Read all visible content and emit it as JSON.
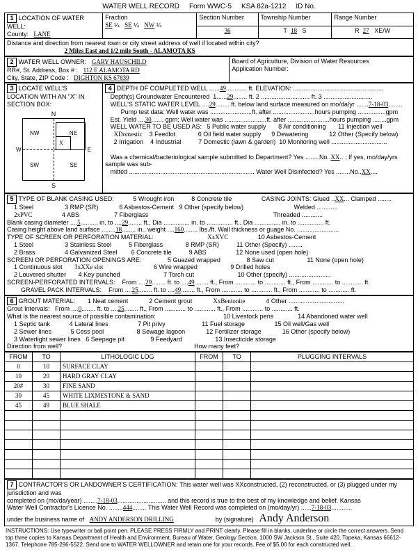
{
  "header": {
    "title": "WATER WELL RECORD",
    "form": "Form WWC-5",
    "ksa": "KSA 82a-1212",
    "idno": "ID No."
  },
  "loc": {
    "title": "LOCATION OF WATER WELL:",
    "county_label": "County:",
    "county": "LANE",
    "fraction_label": "Fraction",
    "frac1": "SE",
    "frac1sub": "¼",
    "frac2": "SE",
    "frac2sub": "¼",
    "frac3": "NW",
    "frac3sub": "¼",
    "section_label": "Section Number",
    "section": "36",
    "township_label": "Township Number",
    "township_t": "T",
    "township": "18",
    "township_s": "S",
    "range_label": "Range Number",
    "range_r": "R",
    "range": "27",
    "range_ew": "XE/W",
    "dist_label": "Distance and direction from nearest town or city street address of well if located within city?",
    "dist": "2 Miles East and 1/2 mile South - ALAMOTA KS"
  },
  "owner": {
    "title": "WATER WELL OWNER:",
    "name": "GARY HAUSCHILD",
    "addr_label": "RR#, St. Address, Box # :",
    "addr": "112 E ALAMOTA RD",
    "city_label": "City, State, ZIP Code :",
    "city": "DIGHTON  KS   67839",
    "board": "Board of Agriculture, Division of Water Resources",
    "appno": "Application Number:"
  },
  "sec3": {
    "title": "LOCATE WELL'S LOCATION WITH AN \"X\" IN SECTION BOX:",
    "labels": {
      "n": "N",
      "s": "S",
      "w": "W",
      "e": "E",
      "nw": "NW",
      "ne": "NE",
      "sw": "SW",
      "se": "SE"
    }
  },
  "sec4": {
    "depth_label": "DEPTH OF COMPLETED WELL",
    "depth": "49",
    "depth_unit": "ft.  ELEVATION:",
    "gw_label": "Depth(s) Groundwater Encountered",
    "gw1": "1",
    "gw2": "29",
    "gw3": "ft.  2",
    "gw4": "ft.  3",
    "static_label": "WELL'S STATIC WATER LEVEL",
    "static": "29",
    "static_unit": "ft. below land surface measured on mo/da/yr",
    "static_date": "7-18-03",
    "pump_label": "Pump test data:   Well water was",
    "pump_after": "ft. after",
    "pump_hours": "hours pumping",
    "pump_gpm": "gpm",
    "est_label": "Est. Yield",
    "est": "30",
    "est_unit": "gpm;   Well water was",
    "est_after": "ft. after",
    "est_hours": "hours pumping",
    "est_gpm": "gpm",
    "use_label": "WELL WATER TO BE USED AS:",
    "uses": [
      "XDomestic",
      "3  Feedlot",
      "2  Irrigation",
      "4  Industrial",
      "5  Public water supply",
      "6  Oil field water supply",
      "7  Domestic (lawn & garden)",
      "8  Air conditioning",
      "9  Dewatering",
      "10  Monitoring well",
      "11  Injection well",
      "12  Other (Specify below)"
    ],
    "chem_label": "Was a chemical/bacteriological sample submitted to Department?  Yes",
    "chem_no": "No",
    "chem_xx": "XX",
    "chem_tail": "; If yes, mo/day/yrs sample was sub-",
    "mitted": "mitted",
    "disinf": "Water Well Disinfected?  Yes",
    "disinf_no": "No",
    "disinf_xx": "XX"
  },
  "sec5": {
    "title": "TYPE OF BLANK CASING USED:",
    "opts": [
      "1  Steel",
      "2xPVC",
      "3  RMP (SR)",
      "4  ABS",
      "5  Wrought iron",
      "6  Asbestos-Cement",
      "7  Fiberglass",
      "8  Concrete tile",
      "9  Other (specify below)"
    ],
    "joints_label": "CASING JOINTS:",
    "joints_glued": "Glued",
    "joints_xx": "XX",
    "joints_clamped": "Clamped",
    "joints_welded": "Welded",
    "joints_threaded": "Threaded",
    "bcd_label": "Blank casing diameter",
    "bcd": "5",
    "bcd_into": "in. to",
    "bcd_ft": "29",
    "bcd_ft_u": "ft., Dia",
    "bcd_in_to": "in. to",
    "bcd_ft2": "ft., Dia",
    "bcd_in_to2": "in. to",
    "bcd_ft3": "ft.",
    "ch_label": "Casing height above land surface",
    "ch": "18",
    "ch_in": "in., weight",
    "ch_wt": "160",
    "ch_lbs": "lbs./ft. Wall thickness or guage No.",
    "perf_title": "TYPE OF SCREEN OR PERFORATION MATERIAL:",
    "perf_opts": [
      "1  Steel",
      "2  Brass",
      "3  Stainless Steel",
      "4  Galvanized Steel",
      "5  Fiberglass",
      "6  Concrete tile",
      "XxXVC",
      "8  RMP (SR)",
      "9  ABS",
      "10  Asbestos-Cement",
      "11  Other (Specify)",
      "12  None used (open hole)"
    ],
    "open_title": "SCREEN OR PERFORATION OPENINGS ARE:",
    "open_opts": [
      "1  Continuous slot",
      "2  Louvered shutter",
      "3xXXe slot",
      "4  Key punched",
      "5  Guazed wrapped",
      "6  Wire wrapped",
      "7  Torch cut",
      "8  Saw cut",
      "9  Drilled holes",
      "10  Other (specify)",
      "11  None (open hole)"
    ],
    "sp_label": "SCREEN-PERFORATED INTERVALS:",
    "sp_from": "From",
    "sp1": "29",
    "sp_to": "ft. to",
    "sp2": "49",
    "sp_ft": "ft., From",
    "sp_to2": "to",
    "sp_ft2": "ft., From",
    "sp_to3": "to",
    "sp_ft3": "ft.",
    "gp_label": "GRAVEL PACK INTERVALS:",
    "gp1": "25",
    "gp2": "49"
  },
  "sec6": {
    "title": "GROUT MATERIAL:",
    "opts": [
      "1  Neat cement",
      "2  Cement grout",
      "XxBentonite",
      "4  Other"
    ],
    "gi_label": "Grout Intervals:",
    "gi_from": "From",
    "gi1": "0",
    "gi_to": "ft. to",
    "gi2": "25",
    "gi_ft": "ft., From",
    "gi_to2": "to",
    "gi_ft2": "ft., From",
    "gi_to3": "to",
    "gi_ft3": "ft.",
    "src_label": "What is the nearest source of possible contamination:",
    "srcs": [
      "1  Septic tank",
      "2  Sewer lines",
      "3  Watertight sewer lines",
      "4  Lateral lines",
      "5  Cess pool",
      "6  Seepage pit",
      "7  Pit privy",
      "8  Sewage lagoon",
      "9  Feedyard",
      "10  Livestock pens",
      "11  Fuel storage",
      "12  Fertilizer storage",
      "13  Insecticide storage",
      "14  Abandoned water well",
      "15  Oil well/Gas well",
      "16  Other (specify below)"
    ],
    "dir_label": "Direction from well?",
    "many_label": "How many feet?"
  },
  "log": {
    "cols": [
      "FROM",
      "TO",
      "LITHOLOGIC LOG",
      "FROM",
      "TO",
      "PLUGGING INTERVALS"
    ],
    "rows": [
      {
        "from": "0",
        "to": "10",
        "desc": "SURFACE CLAY"
      },
      {
        "from": "10",
        "to": "20",
        "desc": "HARD GRAY CLAY"
      },
      {
        "from": "20#",
        "to": "30",
        "desc": "FINE SAND"
      },
      {
        "from": "30",
        "to": "45",
        "desc": "WHITE LIXMESTONE & SAND"
      },
      {
        "from": "45",
        "to": "49",
        "desc": "BLUE SHALE"
      },
      {
        "from": "",
        "to": "",
        "desc": ""
      },
      {
        "from": "",
        "to": "",
        "desc": ""
      },
      {
        "from": "",
        "to": "",
        "desc": ""
      },
      {
        "from": "",
        "to": "",
        "desc": ""
      },
      {
        "from": "",
        "to": "",
        "desc": ""
      },
      {
        "from": "",
        "to": "",
        "desc": ""
      },
      {
        "from": "",
        "to": "",
        "desc": ""
      }
    ]
  },
  "sec7": {
    "line1": "CONTRACTOR'S OR LANDOWNER'S CERTIFICATION: This water well was XXconstructed, (2) reconstructed, or (3) plugged under my jurisdiction and was",
    "line2a": "completed on (mo/da/year)",
    "date1": "7-18-03",
    "line2b": "and this record is true to the best of my knowledge and belief. Kansas",
    "line3a": "Water Well Contractor's Licence No.",
    "lic": "444",
    "line3b": "This Water Well Record was completed on (mo/day/yr)",
    "date2": "7-18-03",
    "line4a": "under the business name of",
    "biz": "ANDY ANDERSON DRILLING",
    "line4b": "by (signature)",
    "sig": "Andy Anderson"
  },
  "footer": "INSTRUCTIONS: Use typewriter or ball point pen. PLEASE PRESS FIRMLY and PRINT clearly. Please fill in blanks, underline or circle the correct answers. Send top three copies to Kansas Department of Health and Environment, Bureau of Water, Geology Section, 1000 SW Jackson St., Suite 420, Topeka, Kansas 66612-1367. Telephone 785-296-5522. Send one to WATER WELLOWNER and retain one for your records. Fee of $5.00 for each constructed well."
}
